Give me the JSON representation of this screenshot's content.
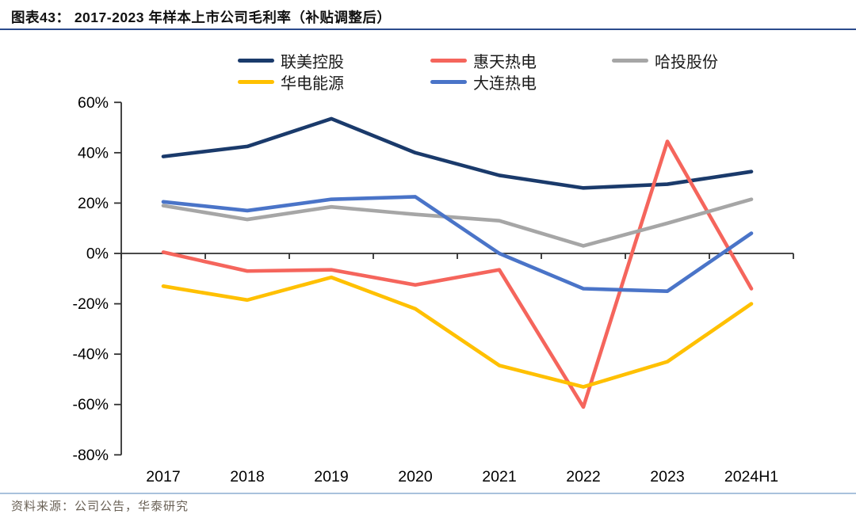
{
  "title": "图表43：  2017-2023 年样本上市公司毛利率（补贴调整后）",
  "source": "资料来源：公司公告，华泰研究",
  "colors": {
    "title_rule": "#2B4A8C",
    "source_rule": "#A9C2DC",
    "axis": "#303030"
  },
  "chart_data": {
    "type": "line",
    "title": "2017-2023 年样本上市公司毛利率（补贴调整后）",
    "categories": [
      "2017",
      "2018",
      "2019",
      "2020",
      "2021",
      "2022",
      "2023",
      "2024H1"
    ],
    "series": [
      {
        "name": "联美控股",
        "color": "#1A3A6B",
        "values": [
          38.5,
          42.5,
          53.5,
          40,
          31,
          26,
          27.5,
          32.5
        ]
      },
      {
        "name": "惠天热电",
        "color": "#F5655C",
        "values": [
          0.5,
          -7,
          -6.5,
          -12.5,
          -6.5,
          -61,
          44.5,
          -14
        ]
      },
      {
        "name": "哈投股份",
        "color": "#A6A6A6",
        "values": [
          19,
          13.5,
          18.5,
          15.5,
          13,
          3,
          12,
          21.5
        ]
      },
      {
        "name": "华电能源",
        "color": "#FFC000",
        "values": [
          -13,
          -18.5,
          -9.5,
          -22,
          -44.5,
          -53,
          -43,
          -20
        ]
      },
      {
        "name": "大连热电",
        "color": "#4A74C8",
        "values": [
          20.5,
          17,
          21.5,
          22.5,
          0,
          -14,
          -15,
          8
        ]
      }
    ],
    "ylim": [
      -80,
      60
    ],
    "ytick_step": 20,
    "ytick_labels": [
      "60%",
      "40%",
      "20%",
      "0%",
      "-20%",
      "-40%",
      "-60%",
      "-80%"
    ],
    "xlabel": "",
    "ylabel": "",
    "grid": false,
    "legend_position": "top"
  }
}
